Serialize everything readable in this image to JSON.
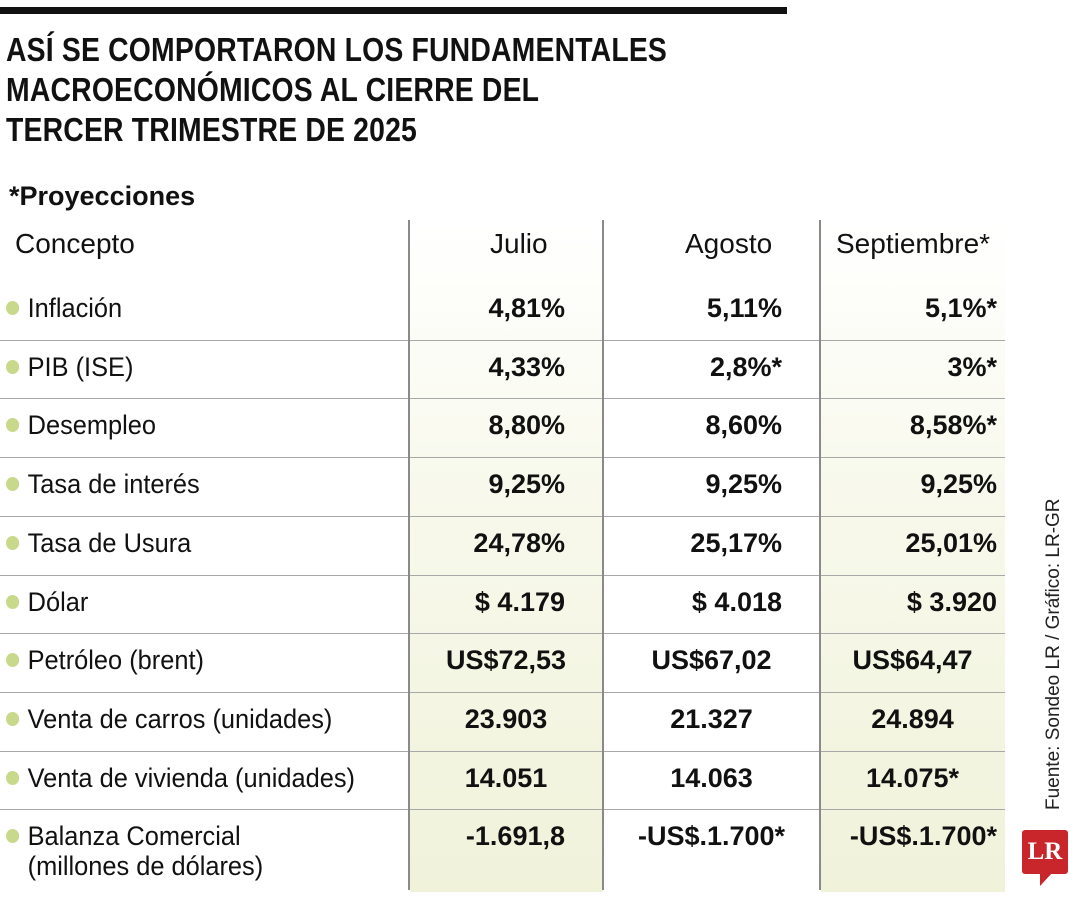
{
  "title_lines": [
    "ASÍ SE COMPORTARON LOS FUNDAMENTALES",
    "MACROECONÓMICOS AL CIERRE DEL",
    "TERCER TRIMESTRE DE 2025"
  ],
  "note": "*Proyecciones",
  "source": "Fuente: Sondeo LR / Gráfico: LR-GR",
  "logo": "LR",
  "colors": {
    "accent_dot": "#c8d98c",
    "column_tint": "#f0f2da",
    "logo_red": "#c8262b"
  },
  "chart_data": {
    "type": "table",
    "columns": [
      "Concepto",
      "Julio",
      "Agosto",
      "Septiembre*"
    ],
    "rows": [
      {
        "label": "Inflación",
        "values": [
          "4,81%",
          "5,11%",
          "5,1%*"
        ]
      },
      {
        "label": "PIB (ISE)",
        "values": [
          "4,33%",
          "2,8%*",
          "3%*"
        ]
      },
      {
        "label": "Desempleo",
        "values": [
          "8,80%",
          "8,60%",
          "8,58%*"
        ]
      },
      {
        "label": "Tasa de interés",
        "values": [
          "9,25%",
          "9,25%",
          "9,25%"
        ]
      },
      {
        "label": "Tasa de Usura",
        "values": [
          "24,78%",
          "25,17%",
          "25,01%"
        ]
      },
      {
        "label": "Dólar",
        "values": [
          "$ 4.179",
          "$ 4.018",
          "$ 3.920"
        ]
      },
      {
        "label": "Petróleo (brent)",
        "values": [
          "US$72,53",
          "US$67,02",
          "US$64,47"
        ]
      },
      {
        "label": "Venta de carros (unidades)",
        "values": [
          "23.903",
          "21.327",
          "24.894"
        ]
      },
      {
        "label": "Venta de vivienda  (unidades)",
        "values": [
          "14.051",
          "14.063",
          "14.075*"
        ]
      },
      {
        "label": "Balanza Comercial",
        "label2": "(millones de dólares)",
        "values": [
          "-1.691,8",
          "-US$.1.700*",
          "-US$.1.700*"
        ]
      }
    ]
  }
}
